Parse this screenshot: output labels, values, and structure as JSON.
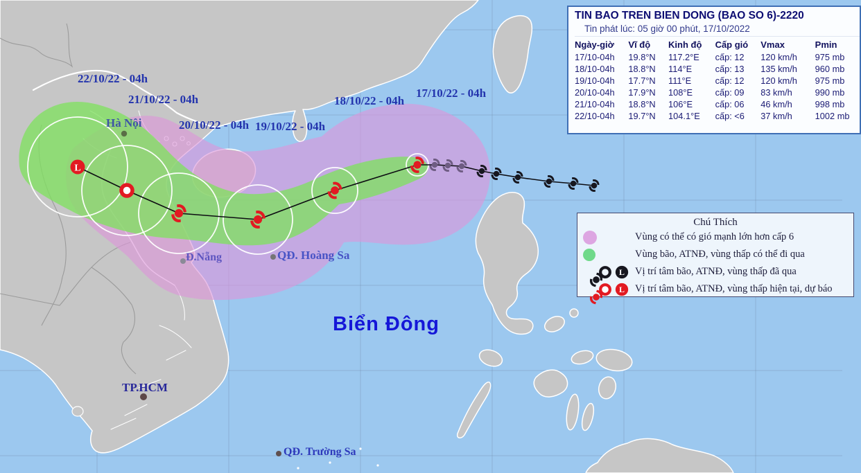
{
  "infobox": {
    "title": "TIN BAO TREN BIEN DONG (BAO SO 6)-2220",
    "issued": "Tin phát lúc: 05 giờ 00 phút, 17/10/2022",
    "columns": [
      "Ngày-giờ",
      "Vĩ độ",
      "Kinh độ",
      "Cấp gió",
      "Vmax",
      "Pmin"
    ],
    "rows": [
      [
        "17/10-04h",
        "19.8°N",
        "117.2°E",
        "cấp: 12",
        "120 km/h",
        "975 mb"
      ],
      [
        "18/10-04h",
        "18.8°N",
        "114°E",
        "cấp: 13",
        "135 km/h",
        "960 mb"
      ],
      [
        "19/10-04h",
        "17.7°N",
        "111°E",
        "cấp: 12",
        "120 km/h",
        "975 mb"
      ],
      [
        "20/10-04h",
        "17.9°N",
        "108°E",
        "cấp: 09",
        "83 km/h",
        "990 mb"
      ],
      [
        "21/10-04h",
        "18.8°N",
        "106°E",
        "cấp: 06",
        "46 km/h",
        "998 mb"
      ],
      [
        "22/10-04h",
        "19.7°N",
        "104.1°E",
        "cấp: <6",
        "37 km/h",
        "1002 mb"
      ]
    ]
  },
  "legend": {
    "title": "Chú Thích",
    "l_glyph": "L",
    "rows": [
      {
        "text": "Vùng có thể có gió mạnh lớn hơn cấp 6"
      },
      {
        "text": "Vùng bão, ATNĐ, vùng thấp có thể đi qua"
      },
      {
        "text": "Vị trí tâm bão, ATNĐ, vùng thấp đã qua"
      },
      {
        "text": "Vị trí tâm bão, ATNĐ, vùng thấp hiện tại, dự báo"
      }
    ]
  },
  "map": {
    "sea_label": "Biển Đông",
    "labels": {
      "d17": "17/10/22 - 04h",
      "d18": "18/10/22 - 04h",
      "d19": "19/10/22 - 04h",
      "d20": "20/10/22 - 04h",
      "d21": "21/10/22 - 04h",
      "d22": "22/10/22 - 04h",
      "hanoi": "Hà Nội",
      "danang": "Đ.Nẵng",
      "hcm": "TP.HCM",
      "hoangsa": "QĐ. Hoàng Sa",
      "truongsa": "QĐ. Trường Sa"
    }
  },
  "colors": {
    "sea": "#9cc8ef",
    "land": "#c6c6c6",
    "wind_zone_pink": "#dd96da",
    "path_zone_green": "#80e060",
    "past_symbol": "#17171f",
    "current_symbol": "#e21a22",
    "legend_pink": "#dda6e2",
    "legend_green": "#6fd98a"
  }
}
